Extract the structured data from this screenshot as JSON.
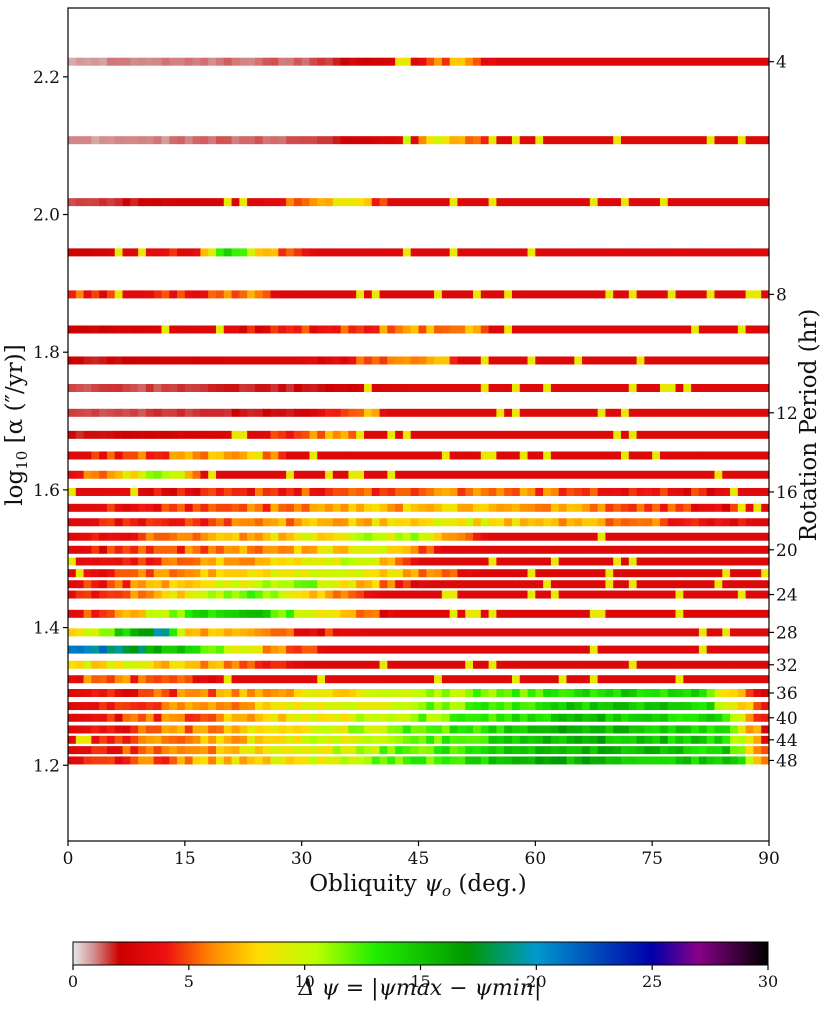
{
  "chart_data": {
    "type": "heatmap",
    "title": "",
    "xlabel_main": "Obliquity ",
    "xlabel_sym": "ψ",
    "xlabel_sub": "o",
    "xlabel_tail": " (deg.)",
    "ylabel_left_pre": "log",
    "ylabel_left_sub": "10",
    "ylabel_left_post": " [α (″/yr)]",
    "ylabel_right": "Rotation Period (hr)",
    "colorbar_label": "Δ ψ = |ψmax − ψmin|",
    "x_range": [
      0,
      90
    ],
    "y_range": [
      1.09,
      2.3
    ],
    "x_ticks": [
      "0",
      "15",
      "30",
      "45",
      "60",
      "75",
      "90"
    ],
    "y_ticks_left": [
      "1.2",
      "1.4",
      "1.6",
      "1.8",
      "2.0",
      "2.2"
    ],
    "y_ticks_right": [
      "4",
      "8",
      "12",
      "16",
      "20",
      "24",
      "28",
      "32",
      "36",
      "40",
      "44",
      "48"
    ],
    "colorbar_range": [
      0,
      30
    ],
    "colorbar_ticks": [
      "0",
      "5",
      "10",
      "15",
      "20",
      "25",
      "30"
    ],
    "colormap_stops": [
      {
        "v": 0,
        "c": "#e8e8e8"
      },
      {
        "v": 0.8,
        "c": "#d49a9a"
      },
      {
        "v": 2,
        "c": "#cc0000"
      },
      {
        "v": 4,
        "c": "#ee1111"
      },
      {
        "v": 6,
        "c": "#ff8800"
      },
      {
        "v": 8,
        "c": "#ffdd00"
      },
      {
        "v": 10.5,
        "c": "#bbff00"
      },
      {
        "v": 13,
        "c": "#22ee00"
      },
      {
        "v": 17,
        "c": "#009900"
      },
      {
        "v": 20,
        "c": "#0099cc"
      },
      {
        "v": 25,
        "c": "#0000aa"
      },
      {
        "v": 27,
        "c": "#880088"
      },
      {
        "v": 30,
        "c": "#000000"
      }
    ],
    "rows": [
      {
        "period": 4,
        "y": 2.222,
        "segments": [
          [
            0,
            0.8
          ],
          [
            30,
            1.3
          ],
          [
            45,
            3
          ],
          [
            50,
            7
          ],
          [
            55,
            3
          ],
          [
            88,
            3
          ],
          [
            90,
            3
          ]
        ]
      },
      {
        "period": 5,
        "y": 2.108,
        "segments": [
          [
            0,
            0.8
          ],
          [
            30,
            1.3
          ],
          [
            42.5,
            3
          ],
          [
            43,
            14
          ],
          [
            44.5,
            3
          ],
          [
            47,
            9
          ],
          [
            55,
            3
          ],
          [
            90,
            3
          ]
        ]
      },
      {
        "period": 6,
        "y": 2.018,
        "segments": [
          [
            0,
            1.3
          ],
          [
            25,
            3
          ],
          [
            36,
            9
          ],
          [
            41,
            3
          ],
          [
            90,
            3
          ]
        ]
      },
      {
        "period": 7,
        "y": 1.945,
        "segments": [
          [
            0,
            2
          ],
          [
            17,
            4
          ],
          [
            20,
            16
          ],
          [
            25,
            7
          ],
          [
            32,
            3
          ],
          [
            90,
            3
          ]
        ]
      },
      {
        "period": 8,
        "y": 1.884,
        "segments": [
          [
            0,
            3
          ],
          [
            1,
            5
          ],
          [
            8,
            3
          ],
          [
            25,
            6
          ],
          [
            27,
            3
          ],
          [
            90,
            3
          ]
        ]
      },
      {
        "period": 9,
        "y": 1.833,
        "segments": [
          [
            0,
            2
          ],
          [
            18,
            3
          ],
          [
            52,
            7
          ],
          [
            54,
            3
          ],
          [
            90,
            3
          ]
        ]
      },
      {
        "period": 10,
        "y": 1.788,
        "segments": [
          [
            0,
            1.8
          ],
          [
            30,
            3
          ],
          [
            48,
            7
          ],
          [
            50,
            3
          ],
          [
            90,
            3
          ]
        ]
      },
      {
        "period": 11,
        "y": 1.748,
        "segments": [
          [
            0,
            1.3
          ],
          [
            30,
            1.8
          ],
          [
            43.5,
            3
          ],
          [
            90,
            3
          ]
        ]
      },
      {
        "period": 12,
        "y": 1.712,
        "segments": [
          [
            0,
            1.3
          ],
          [
            30,
            2
          ],
          [
            39,
            7
          ],
          [
            41,
            3
          ],
          [
            90,
            3
          ]
        ]
      },
      {
        "period": 13,
        "y": 1.68,
        "segments": [
          [
            0,
            1.8
          ],
          [
            25,
            3
          ],
          [
            35,
            7
          ],
          [
            37,
            3
          ],
          [
            90,
            3
          ]
        ]
      },
      {
        "period": 14,
        "y": 1.65,
        "segments": [
          [
            0,
            3
          ],
          [
            24.5,
            8
          ],
          [
            28,
            3
          ],
          [
            90,
            3
          ]
        ]
      },
      {
        "period": 15,
        "y": 1.622,
        "segments": [
          [
            0,
            3
          ],
          [
            13,
            12
          ],
          [
            17,
            3
          ],
          [
            90,
            3
          ]
        ]
      },
      {
        "period": 16,
        "y": 1.597,
        "segments": [
          [
            0,
            3
          ],
          [
            53,
            6
          ],
          [
            90,
            3
          ]
        ]
      },
      {
        "period": 17,
        "y": 1.574,
        "segments": [
          [
            0,
            3
          ],
          [
            52,
            8
          ],
          [
            90,
            3
          ]
        ]
      },
      {
        "period": 18,
        "y": 1.553,
        "segments": [
          [
            0,
            3
          ],
          [
            50,
            9
          ],
          [
            90,
            3
          ]
        ]
      },
      {
        "period": 19,
        "y": 1.532,
        "segments": [
          [
            0,
            3
          ],
          [
            45,
            11
          ],
          [
            54,
            3
          ],
          [
            90,
            3
          ]
        ]
      },
      {
        "period": 20,
        "y": 1.513,
        "segments": [
          [
            0,
            3
          ],
          [
            41,
            9
          ],
          [
            48,
            3
          ],
          [
            90,
            3
          ]
        ]
      },
      {
        "period": 21,
        "y": 1.496,
        "segments": [
          [
            0,
            3
          ],
          [
            38,
            10
          ],
          [
            45,
            3
          ],
          [
            90,
            3
          ]
        ]
      },
      {
        "period": 22,
        "y": 1.479,
        "segments": [
          [
            0,
            3
          ],
          [
            35,
            11
          ],
          [
            52,
            3
          ],
          [
            90,
            3
          ]
        ]
      },
      {
        "period": 23,
        "y": 1.463,
        "segments": [
          [
            0,
            3
          ],
          [
            30,
            12
          ],
          [
            46,
            3
          ],
          [
            90,
            3
          ]
        ]
      },
      {
        "period": 24,
        "y": 1.448,
        "segments": [
          [
            0,
            3
          ],
          [
            25,
            12
          ],
          [
            40,
            3
          ],
          [
            90,
            3
          ]
        ]
      },
      {
        "period": 26,
        "y": 1.42,
        "segments": [
          [
            0,
            3
          ],
          [
            22,
            16
          ],
          [
            42,
            3
          ],
          [
            90,
            3
          ]
        ]
      },
      {
        "period": 28,
        "y": 1.393,
        "segments": [
          [
            0,
            6
          ],
          [
            12,
            20
          ],
          [
            15,
            8
          ],
          [
            30,
            4
          ],
          [
            40,
            3
          ],
          [
            90,
            3
          ]
        ]
      },
      {
        "period": 30,
        "y": 1.368,
        "segments": [
          [
            0,
            22
          ],
          [
            5,
            20
          ],
          [
            15,
            14
          ],
          [
            25,
            7
          ],
          [
            33,
            3
          ],
          [
            90,
            3
          ]
        ]
      },
      {
        "period": 32,
        "y": 1.346,
        "segments": [
          [
            0,
            8
          ],
          [
            8,
            9
          ],
          [
            24,
            5
          ],
          [
            30,
            3
          ],
          [
            90,
            3
          ]
        ]
      },
      {
        "period": 34,
        "y": 1.325,
        "segments": [
          [
            0,
            3
          ],
          [
            3,
            6
          ],
          [
            12,
            5
          ],
          [
            22,
            3
          ],
          [
            90,
            3
          ]
        ]
      },
      {
        "period": 36,
        "y": 1.305,
        "segments": [
          [
            0,
            3
          ],
          [
            70,
            14
          ],
          [
            80,
            14
          ],
          [
            90,
            3
          ]
        ]
      },
      {
        "period": 38,
        "y": 1.286,
        "segments": [
          [
            0,
            3
          ],
          [
            68,
            15
          ],
          [
            82,
            14
          ],
          [
            90,
            3
          ]
        ]
      },
      {
        "period": 40,
        "y": 1.269,
        "segments": [
          [
            0,
            3
          ],
          [
            67,
            15
          ],
          [
            83,
            14
          ],
          [
            90,
            3
          ]
        ]
      },
      {
        "period": 42,
        "y": 1.252,
        "segments": [
          [
            0,
            3
          ],
          [
            66,
            16
          ],
          [
            84,
            14
          ],
          [
            90,
            3
          ]
        ]
      },
      {
        "period": 44,
        "y": 1.237,
        "segments": [
          [
            0,
            3
          ],
          [
            65,
            16
          ],
          [
            84,
            14
          ],
          [
            90,
            3
          ]
        ]
      },
      {
        "period": 46,
        "y": 1.222,
        "segments": [
          [
            0,
            3
          ],
          [
            64,
            16
          ],
          [
            85,
            14
          ],
          [
            90,
            3
          ]
        ]
      },
      {
        "period": 48,
        "y": 1.207,
        "segments": [
          [
            0,
            3
          ],
          [
            63,
            16
          ],
          [
            86,
            14
          ],
          [
            90,
            3
          ]
        ]
      }
    ]
  }
}
